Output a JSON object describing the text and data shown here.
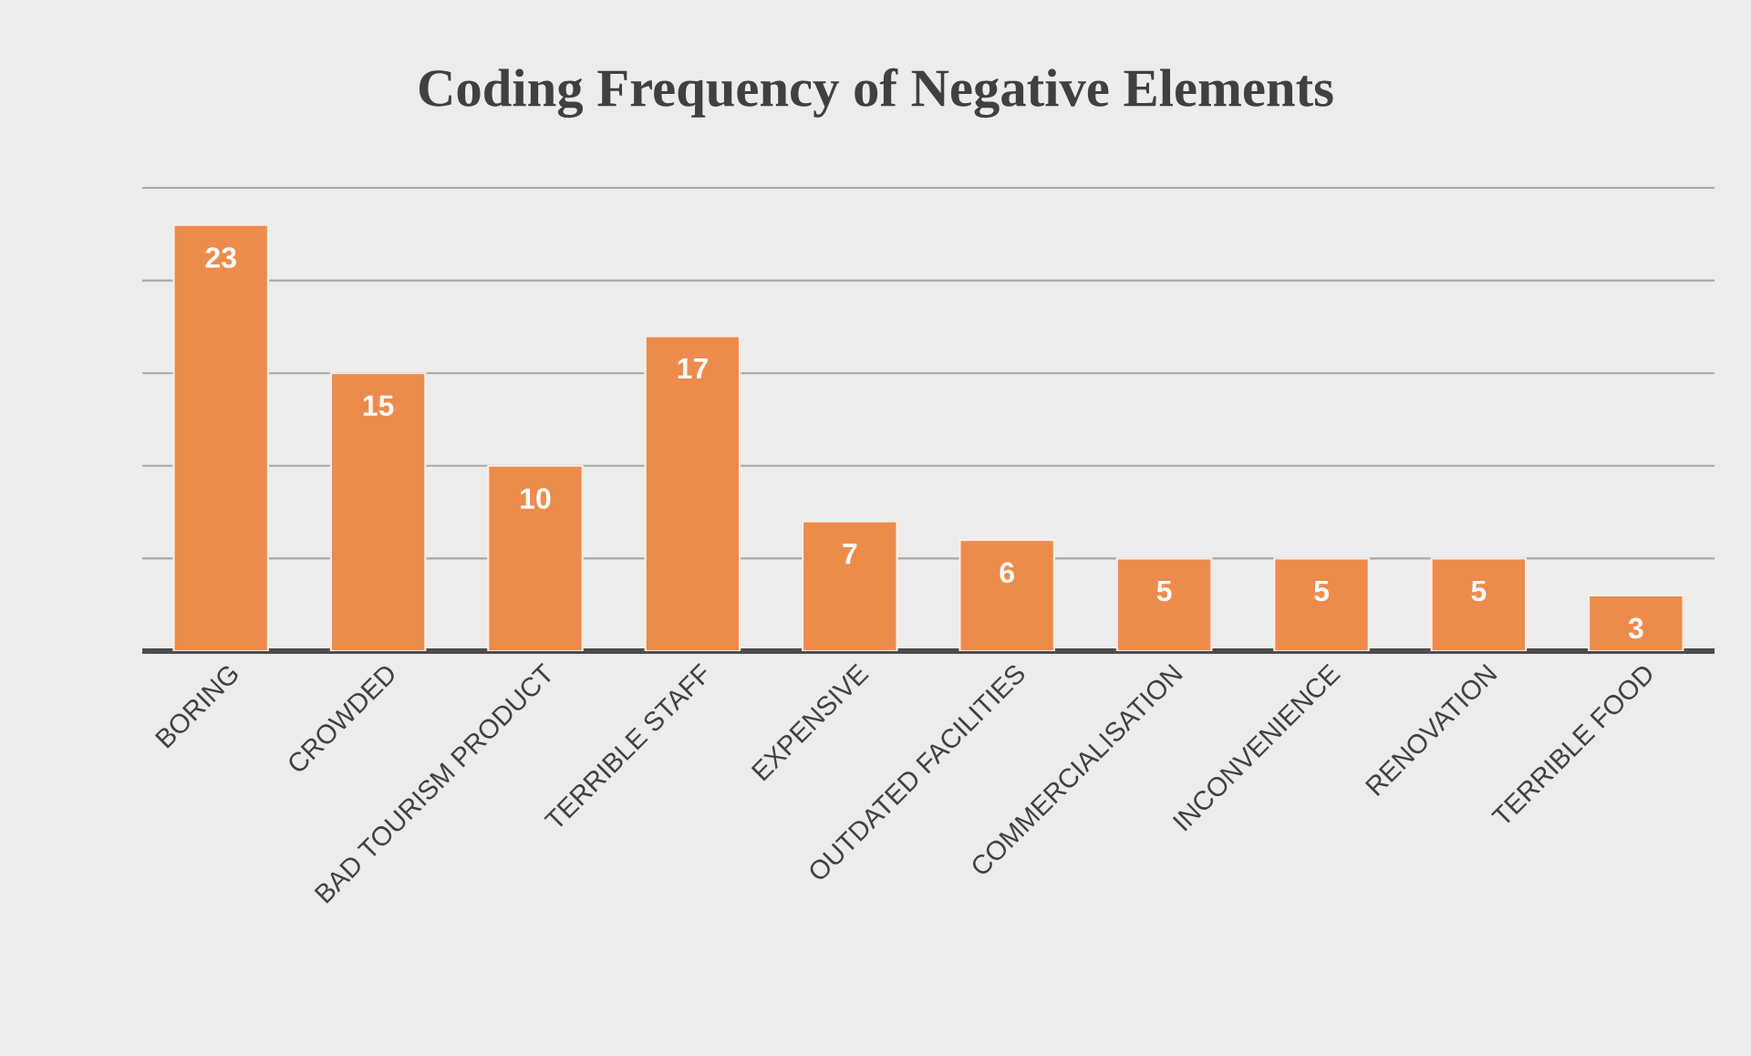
{
  "chart_data": {
    "type": "bar",
    "title": "Coding Frequency of Negative Elements",
    "categories": [
      "BORING",
      "CROWDED",
      "BAD TOURISM PRODUCT",
      "TERRIBLE STAFF",
      "EXPENSIVE",
      "OUTDATED FACILITIES",
      "COMMERCIALISATION",
      "INCONVENIENCE",
      "RENOVATION",
      "TERRIBLE  FOOD"
    ],
    "values": [
      23,
      15,
      10,
      17,
      7,
      6,
      5,
      5,
      5,
      3
    ],
    "color": "#ed8b4c",
    "ylim": [
      0,
      25
    ],
    "yticks": [
      {
        "value": 0,
        "label": null
      },
      {
        "value": 5,
        "label": null
      },
      {
        "value": 10,
        "label": null
      },
      {
        "value": 15,
        "label": null
      },
      {
        "value": 20,
        "label": null
      },
      {
        "value": 25,
        "label": null
      }
    ],
    "grid": "y",
    "tick_labels": "x",
    "data_labels": true
  }
}
